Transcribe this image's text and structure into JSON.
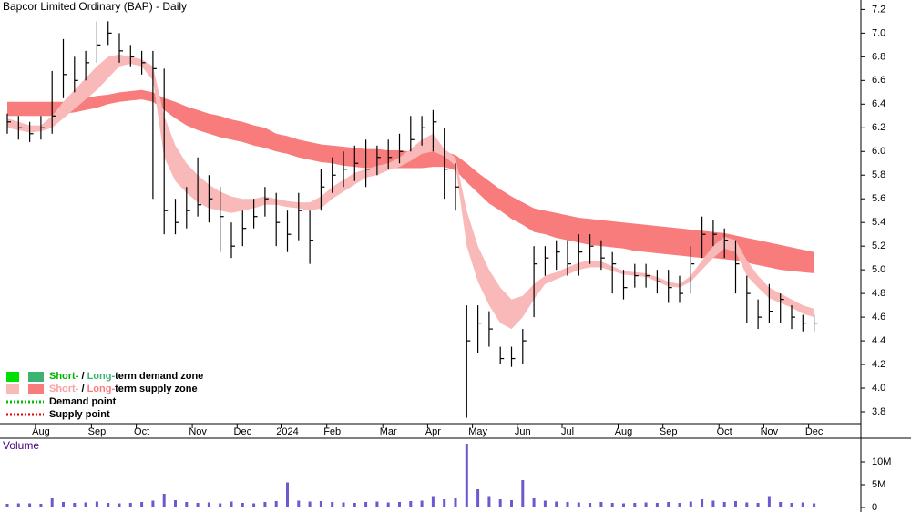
{
  "chart_data": [
    {
      "type": "ohlc",
      "title": "Bapcor Limited Ordinary (BAP) - Daily",
      "categories": [
        null,
        null,
        null,
        "Aug",
        null,
        null,
        null,
        null,
        "Sep",
        null,
        null,
        null,
        "Oct",
        null,
        null,
        null,
        null,
        "Nov",
        null,
        null,
        null,
        "Dec",
        null,
        null,
        null,
        "2024",
        null,
        null,
        null,
        "Feb",
        null,
        null,
        null,
        null,
        "Mar",
        null,
        null,
        null,
        "Apr",
        null,
        null,
        null,
        "May",
        null,
        null,
        null,
        "Jun",
        null,
        null,
        null,
        "Jul",
        null,
        null,
        null,
        null,
        "Aug",
        null,
        null,
        null,
        "Sep",
        null,
        null,
        null,
        null,
        "Oct",
        null,
        null,
        null,
        "Nov",
        null,
        null,
        null,
        "Dec"
      ],
      "high": [
        6.32,
        6.3,
        6.25,
        6.3,
        6.68,
        6.95,
        6.8,
        6.85,
        7.1,
        7.1,
        7.0,
        6.9,
        6.85,
        6.85,
        6.7,
        5.6,
        5.7,
        5.95,
        5.8,
        5.7,
        5.4,
        5.5,
        5.6,
        5.7,
        5.65,
        5.5,
        5.65,
        5.5,
        5.85,
        5.95,
        6.0,
        6.05,
        6.1,
        6.05,
        6.1,
        6.15,
        6.3,
        6.3,
        6.35,
        6.2,
        5.9,
        4.7,
        4.7,
        4.65,
        4.35,
        4.35,
        4.5,
        5.2,
        5.2,
        5.25,
        5.25,
        5.3,
        5.3,
        5.25,
        5.15,
        5.0,
        5.05,
        5.05,
        5.0,
        5.0,
        4.95,
        5.2,
        5.45,
        5.42,
        5.35,
        5.25,
        4.95,
        4.75,
        4.88,
        4.8,
        4.7,
        4.62,
        4.62
      ],
      "low": [
        6.15,
        6.1,
        6.08,
        6.1,
        6.15,
        6.45,
        6.5,
        6.6,
        6.75,
        6.9,
        6.75,
        6.72,
        6.65,
        5.6,
        5.3,
        5.3,
        5.35,
        5.45,
        5.4,
        5.15,
        5.1,
        5.2,
        5.35,
        5.45,
        5.2,
        5.15,
        5.25,
        5.05,
        5.5,
        5.65,
        5.7,
        5.75,
        5.7,
        5.8,
        5.85,
        5.9,
        6.0,
        6.05,
        6.0,
        5.6,
        5.5,
        3.75,
        4.3,
        4.35,
        4.2,
        4.18,
        4.2,
        4.6,
        4.95,
        5.0,
        4.95,
        4.95,
        5.05,
        5.0,
        4.8,
        4.75,
        4.85,
        4.85,
        4.8,
        4.72,
        4.72,
        4.8,
        5.1,
        5.2,
        5.1,
        4.8,
        4.55,
        4.5,
        4.55,
        4.55,
        4.5,
        4.48,
        4.48
      ],
      "close": [
        6.25,
        6.2,
        6.15,
        6.2,
        6.3,
        6.65,
        6.6,
        6.75,
        6.9,
        7.0,
        6.85,
        6.8,
        6.75,
        6.7,
        5.5,
        5.4,
        5.5,
        5.55,
        5.6,
        5.45,
        5.2,
        5.35,
        5.45,
        5.6,
        5.4,
        5.3,
        5.5,
        5.25,
        5.7,
        5.8,
        5.85,
        5.9,
        5.85,
        5.95,
        5.95,
        6.0,
        6.1,
        6.2,
        6.25,
        5.85,
        5.7,
        4.4,
        4.55,
        4.5,
        4.25,
        4.25,
        4.4,
        5.05,
        5.1,
        5.15,
        5.05,
        5.15,
        5.2,
        5.1,
        5.05,
        4.85,
        4.95,
        4.95,
        4.9,
        4.85,
        4.8,
        5.05,
        5.3,
        5.3,
        5.25,
        5.05,
        4.8,
        4.6,
        4.65,
        4.75,
        4.6,
        4.55,
        4.55
      ],
      "long_zone": {
        "color": "#f87c7c",
        "upper": [
          6.42,
          6.42,
          6.42,
          6.42,
          6.42,
          6.42,
          6.43,
          6.45,
          6.47,
          6.48,
          6.5,
          6.51,
          6.52,
          6.5,
          6.45,
          6.42,
          6.38,
          6.35,
          6.32,
          6.3,
          6.27,
          6.25,
          6.22,
          6.2,
          6.15,
          6.13,
          6.1,
          6.08,
          6.06,
          6.05,
          6.04,
          6.03,
          6.02,
          6.02,
          6.01,
          6.01,
          6.0,
          6.0,
          6.0,
          6.0,
          5.97,
          5.9,
          5.82,
          5.75,
          5.68,
          5.62,
          5.57,
          5.52,
          5.5,
          5.48,
          5.46,
          5.44,
          5.43,
          5.42,
          5.41,
          5.4,
          5.39,
          5.38,
          5.37,
          5.36,
          5.35,
          5.34,
          5.33,
          5.32,
          5.31,
          5.29,
          5.27,
          5.25,
          5.23,
          5.21,
          5.19,
          5.17,
          5.15
        ],
        "lower": [
          6.3,
          6.3,
          6.3,
          6.3,
          6.3,
          6.32,
          6.33,
          6.35,
          6.37,
          6.4,
          6.42,
          6.43,
          6.44,
          6.42,
          6.35,
          6.28,
          6.22,
          6.18,
          6.15,
          6.12,
          6.1,
          6.08,
          6.05,
          6.03,
          6.0,
          5.98,
          5.95,
          5.93,
          5.91,
          5.9,
          5.88,
          5.87,
          5.86,
          5.86,
          5.86,
          5.86,
          5.86,
          5.86,
          5.87,
          5.87,
          5.84,
          5.74,
          5.65,
          5.56,
          5.5,
          5.43,
          5.38,
          5.32,
          5.3,
          5.27,
          5.25,
          5.23,
          5.21,
          5.2,
          5.19,
          5.18,
          5.16,
          5.15,
          5.14,
          5.13,
          5.12,
          5.11,
          5.1,
          5.1,
          5.09,
          5.08,
          5.06,
          5.04,
          5.02,
          5.0,
          4.99,
          4.98,
          4.97
        ]
      },
      "short_zone": {
        "color": "#f9b9b9",
        "upper": [
          6.28,
          6.25,
          6.22,
          6.22,
          6.3,
          6.42,
          6.52,
          6.62,
          6.72,
          6.8,
          6.82,
          6.8,
          6.78,
          6.72,
          6.3,
          6.05,
          5.9,
          5.8,
          5.72,
          5.66,
          5.62,
          5.6,
          5.6,
          5.62,
          5.6,
          5.58,
          5.57,
          5.57,
          5.62,
          5.7,
          5.76,
          5.82,
          5.85,
          5.88,
          5.9,
          5.95,
          6.02,
          6.1,
          6.15,
          6.02,
          5.95,
          5.5,
          5.2,
          5.0,
          4.85,
          4.75,
          4.78,
          4.88,
          4.95,
          4.98,
          5.02,
          5.06,
          5.08,
          5.07,
          5.03,
          4.99,
          4.98,
          4.97,
          4.94,
          4.9,
          4.88,
          4.95,
          5.08,
          5.2,
          5.28,
          5.25,
          5.08,
          4.95,
          4.85,
          4.8,
          4.75,
          4.7,
          4.67
        ],
        "lower": [
          6.2,
          6.18,
          6.16,
          6.17,
          6.2,
          6.28,
          6.36,
          6.44,
          6.52,
          6.62,
          6.72,
          6.74,
          6.72,
          6.6,
          5.95,
          5.75,
          5.65,
          5.57,
          5.52,
          5.5,
          5.48,
          5.5,
          5.52,
          5.55,
          5.55,
          5.53,
          5.52,
          5.5,
          5.52,
          5.6,
          5.66,
          5.72,
          5.78,
          5.8,
          5.84,
          5.87,
          5.92,
          5.98,
          6.0,
          5.96,
          5.88,
          5.2,
          4.9,
          4.7,
          4.55,
          4.5,
          4.6,
          4.75,
          4.88,
          4.92,
          4.96,
          5.0,
          5.02,
          5.02,
          4.99,
          4.96,
          4.95,
          4.94,
          4.9,
          4.86,
          4.85,
          4.9,
          5.0,
          5.1,
          5.18,
          5.15,
          4.95,
          4.85,
          4.76,
          4.72,
          4.68,
          4.63,
          4.6
        ]
      },
      "ylim": [
        3.7,
        7.28
      ],
      "yticks": [
        {
          "value": 3.8,
          "label": "3.8"
        },
        {
          "value": 4,
          "label": "4.0"
        },
        4.2,
        4.4,
        4.6,
        4.8,
        {
          "value": 5,
          "label": "5.0"
        },
        5.2,
        5.4,
        5.6,
        5.8,
        {
          "value": 6,
          "label": "6.0"
        },
        6.2,
        6.4,
        6.6,
        6.8,
        {
          "value": 7,
          "label": "7.0"
        },
        7.2
      ],
      "legend": [
        {
          "parts": [
            "Short-",
            " / ",
            "Long-",
            "term demand zone"
          ]
        },
        {
          "parts": [
            "Short-",
            " / ",
            "Long-",
            "term supply zone"
          ]
        },
        {
          "parts": [
            "Demand point"
          ]
        },
        {
          "parts": [
            "Supply point"
          ]
        }
      ]
    },
    {
      "type": "bar",
      "title": "Volume",
      "values": [
        0.8,
        0.9,
        0.9,
        0.8,
        2.0,
        1.2,
        1.0,
        1.1,
        1.3,
        1.0,
        0.9,
        1.0,
        1.2,
        1.5,
        3.0,
        1.6,
        1.2,
        1.0,
        1.1,
        0.9,
        1.3,
        1.0,
        0.9,
        1.2,
        1.4,
        5.5,
        1.5,
        1.3,
        1.4,
        1.2,
        1.1,
        1.0,
        1.2,
        1.3,
        1.1,
        1.2,
        1.4,
        1.5,
        2.5,
        1.8,
        2.0,
        14,
        4.0,
        2.5,
        1.8,
        1.6,
        6.0,
        2.0,
        1.5,
        1.3,
        1.2,
        1.1,
        1.0,
        1.2,
        1.0,
        0.9,
        1.0,
        1.1,
        1.0,
        1.2,
        1.0,
        1.3,
        1.8,
        1.5,
        1.2,
        1.4,
        1.1,
        1.0,
        2.5,
        1.2,
        1.0,
        1.1,
        0.9
      ],
      "color": "#6a5acd",
      "ylim": [
        0,
        15
      ],
      "yticks": [
        0,
        {
          "value": 5,
          "label": "5M"
        },
        {
          "value": 10,
          "label": "10M"
        }
      ]
    }
  ]
}
